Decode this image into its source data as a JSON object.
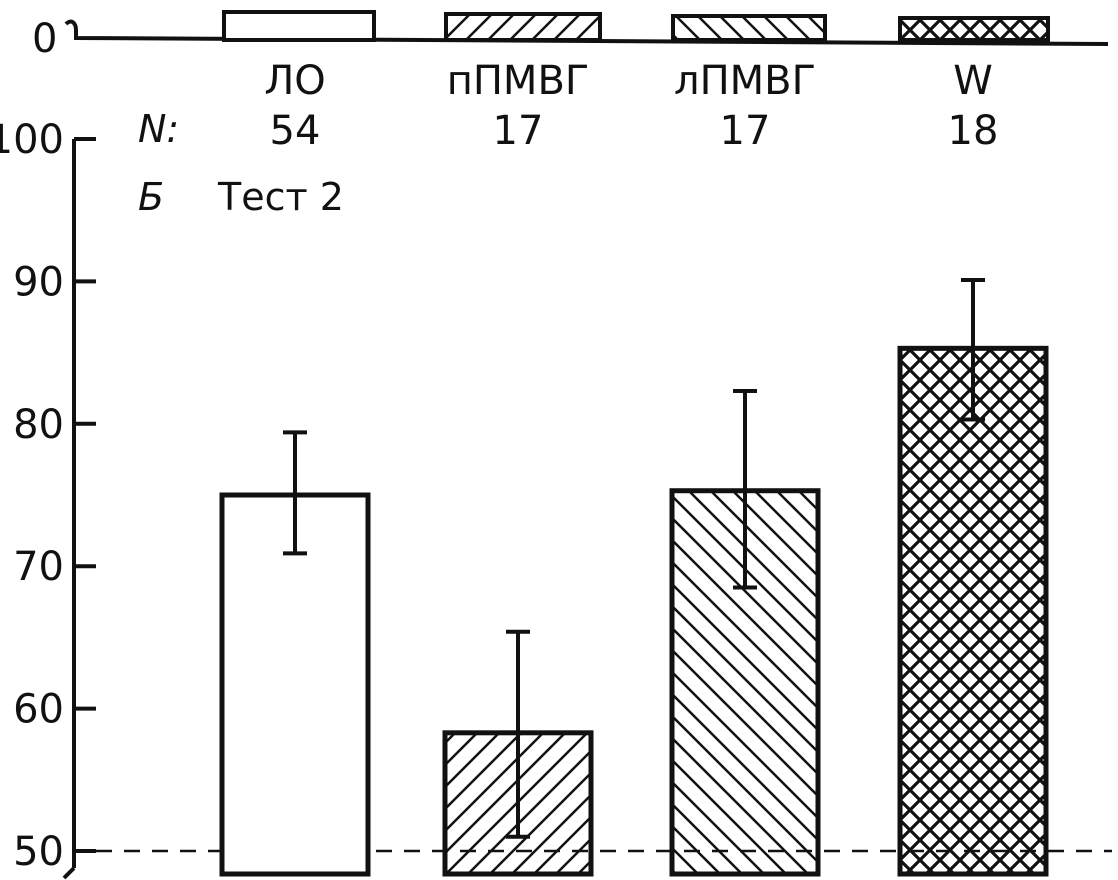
{
  "chart_data": {
    "type": "bar",
    "panel_label": "Б",
    "title": "Тест 2",
    "n_label": "N:",
    "categories": [
      "ЛО",
      "пПМВГ",
      "лПМВГ",
      "W"
    ],
    "n_values": [
      "54",
      "17",
      "17",
      "18"
    ],
    "values": [
      75.0,
      58.3,
      75.3,
      85.3
    ],
    "error_low": [
      70.9,
      51.0,
      68.5,
      80.3
    ],
    "error_high": [
      79.4,
      65.4,
      82.3,
      90.1
    ],
    "patterns": [
      "none",
      "hatch-diagonal-up",
      "hatch-diagonal-down",
      "crosshatch"
    ],
    "ylim": [
      50,
      100
    ],
    "yticks": [
      50,
      60,
      70,
      80,
      90,
      100
    ],
    "yticklabels": [
      "50",
      "60",
      "70",
      "80",
      "90",
      "100"
    ],
    "chance_line": 50,
    "legend_zero_label": "0"
  },
  "colors": {
    "ink": "#111111",
    "background": "#ffffff"
  }
}
